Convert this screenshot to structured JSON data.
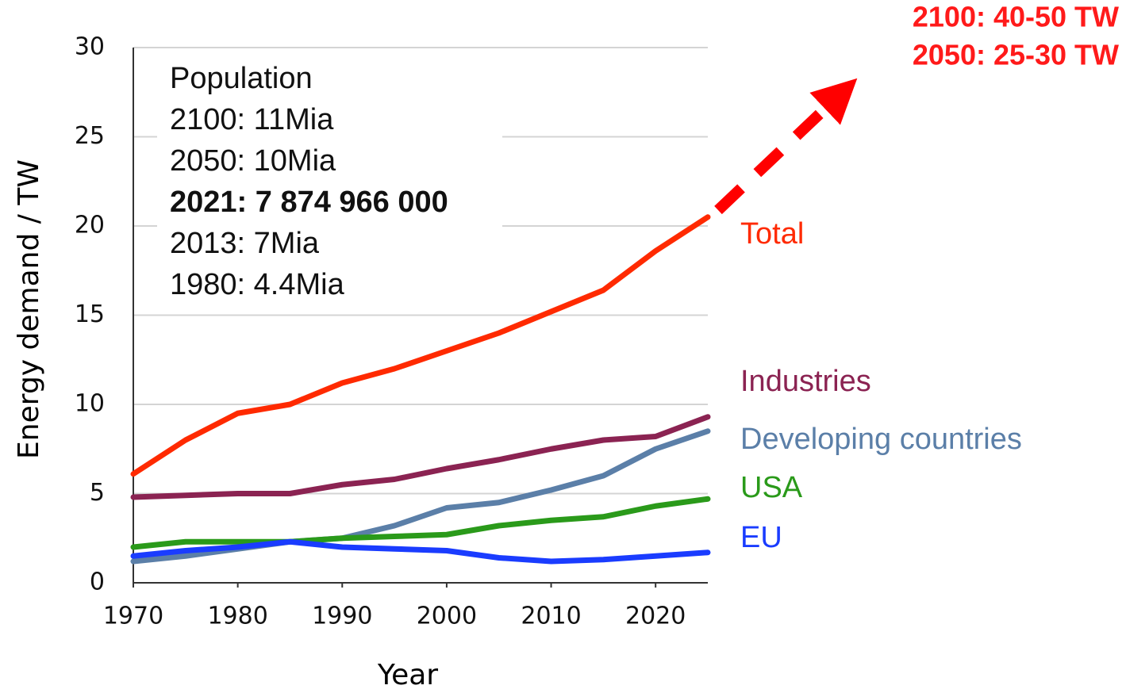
{
  "chart_data": {
    "type": "line",
    "xlabel": "Year",
    "ylabel": "Energy demand  / TW",
    "x": [
      1970,
      1975,
      1980,
      1985,
      1990,
      1995,
      2000,
      2005,
      2010,
      2015,
      2020,
      2025
    ],
    "series": [
      {
        "name": "Total",
        "color": "#ff2a00",
        "values": [
          6.1,
          8.0,
          9.5,
          10.0,
          11.2,
          12.0,
          13.0,
          14.0,
          15.2,
          16.4,
          18.6,
          20.5
        ]
      },
      {
        "name": "Industries",
        "color": "#8b2352",
        "values": [
          4.8,
          4.9,
          5.0,
          5.0,
          5.5,
          5.8,
          6.4,
          6.9,
          7.5,
          8.0,
          8.2,
          9.3
        ]
      },
      {
        "name": "Developing countries",
        "color": "#5b7fa8",
        "values": [
          1.2,
          1.5,
          1.9,
          2.3,
          2.5,
          3.2,
          4.2,
          4.5,
          5.2,
          6.0,
          7.5,
          8.5
        ]
      },
      {
        "name": "USA",
        "color": "#2a9a1a",
        "values": [
          2.0,
          2.3,
          2.3,
          2.3,
          2.5,
          2.6,
          2.7,
          3.2,
          3.5,
          3.7,
          4.3,
          4.7
        ]
      },
      {
        "name": "EU",
        "color": "#1a3cff",
        "values": [
          1.5,
          1.8,
          2.0,
          2.3,
          2.0,
          1.9,
          1.8,
          1.4,
          1.2,
          1.3,
          1.5,
          1.7
        ]
      }
    ],
    "xlim": [
      1970,
      2025
    ],
    "xticks": [
      1970,
      1980,
      1990,
      2000,
      2010,
      2020
    ],
    "ylim": [
      0,
      30
    ],
    "yticks": [
      0,
      5,
      10,
      15,
      20,
      25,
      30
    ],
    "grid": true,
    "population_box": {
      "lines": [
        "Population",
        "2100: 11Mia",
        "2050: 10Mia",
        "2021: 7 874 966 000",
        "2013: 7Mia",
        "1980: 4.4Mia"
      ],
      "bold_index": 3
    },
    "projection": [
      "2100: 40-50 TW",
      "2050: 25-30 TW"
    ]
  }
}
